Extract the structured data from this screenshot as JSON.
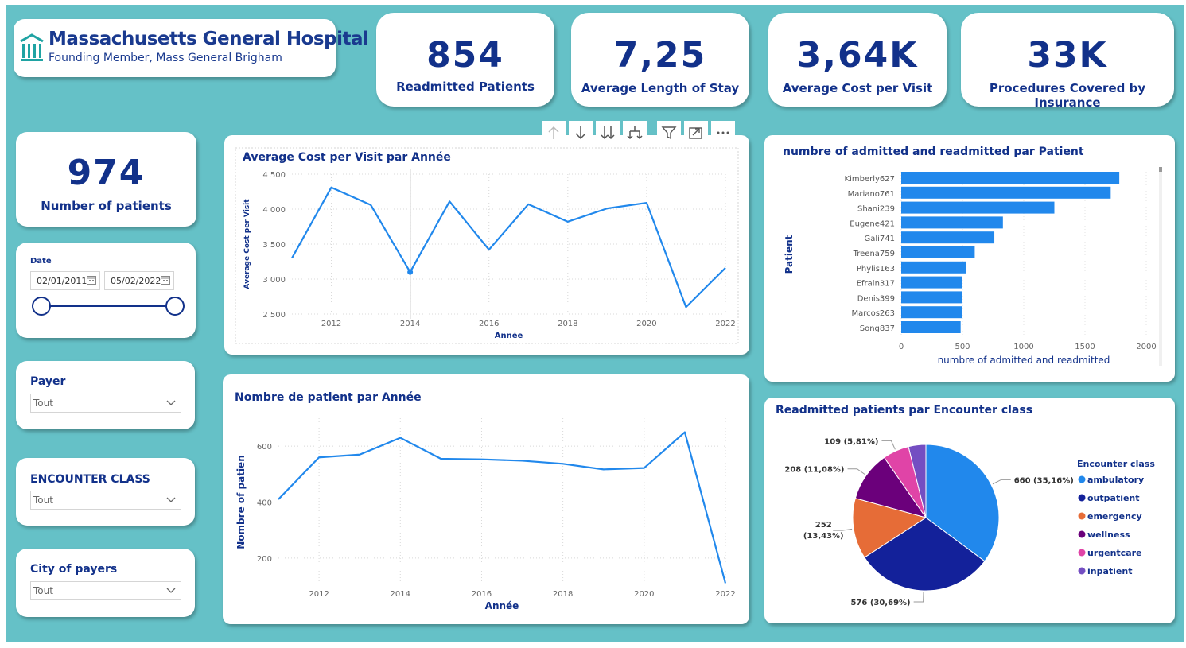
{
  "header": {
    "title": "Massachusetts General Hospital",
    "subtitle": "Founding Member, Mass General Brigham"
  },
  "kpis": [
    {
      "value": "854",
      "label": "Readmitted Patients"
    },
    {
      "value": "7,25",
      "label": "Average Length of Stay"
    },
    {
      "value": "3,64K",
      "label": "Average Cost per Visit"
    },
    {
      "value": "33K",
      "label": "Procedures Covered by Insurance"
    }
  ],
  "patients_card": {
    "value": "974",
    "label": "Number of patients"
  },
  "date_slicer": {
    "label": "Date",
    "start": "02/01/2011",
    "end": "05/02/2022"
  },
  "slicers": [
    {
      "title": "Payer",
      "value": "Tout"
    },
    {
      "title": "ENCOUNTER CLASS",
      "value": "Tout"
    },
    {
      "title": "City of payers",
      "value": "Tout"
    }
  ],
  "colors": {
    "line": "#2188ec",
    "bar": "#2188ec",
    "text": "#12318a",
    "background": "#65c1c7"
  },
  "chart_data": [
    {
      "type": "line",
      "title": "Average Cost per Visit par Année",
      "xlabel": "Année",
      "ylabel": "Average Cost per Visit",
      "x": [
        2011,
        2012,
        2013,
        2014,
        2015,
        2016,
        2017,
        2018,
        2019,
        2020,
        2021,
        2022
      ],
      "values": [
        3300,
        4310,
        4060,
        3100,
        4110,
        3420,
        4070,
        3820,
        4010,
        4090,
        2600,
        3160
      ],
      "xticks": [
        "2012",
        "2014",
        "2016",
        "2018",
        "2020",
        "2022"
      ],
      "yticks": [
        "2 500",
        "3 000",
        "3 500",
        "4 000",
        "4 500"
      ],
      "ylim": [
        2500,
        4500
      ],
      "highlight_x": 2014,
      "grid": true
    },
    {
      "type": "bar",
      "orientation": "horizontal",
      "title": "numbre of admitted and readmitted par Patient",
      "xlabel": "numbre of admitted and readmitted",
      "ylabel": "Patient",
      "categories": [
        "Kimberly627",
        "Mariano761",
        "Shani239",
        "Eugene421",
        "Gali741",
        "Treena759",
        "Phylis163",
        "Efrain317",
        "Denis399",
        "Marcos263",
        "Song837"
      ],
      "values": [
        1780,
        1710,
        1250,
        830,
        760,
        600,
        530,
        500,
        500,
        495,
        485
      ],
      "xticks": [
        "0",
        "500",
        "1000",
        "1500",
        "2000"
      ],
      "xlim": [
        0,
        2000
      ],
      "grid": true
    },
    {
      "type": "line",
      "title": "Nombre de patient par Année",
      "xlabel": "Année",
      "ylabel": "Nombre of patien",
      "x": [
        2011,
        2012,
        2013,
        2014,
        2015,
        2016,
        2017,
        2018,
        2019,
        2020,
        2021,
        2022
      ],
      "values": [
        410,
        560,
        570,
        630,
        555,
        553,
        548,
        537,
        517,
        522,
        650,
        110
      ],
      "xticks": [
        "2012",
        "2014",
        "2016",
        "2018",
        "2020",
        "2022"
      ],
      "yticks": [
        "200",
        "400",
        "600"
      ],
      "ylim": [
        100,
        700
      ],
      "grid": true
    },
    {
      "type": "pie",
      "title": "Readmitted patients par Encounter class",
      "legend_title": "Encounter class",
      "legend_position": "right",
      "slices": [
        {
          "name": "ambulatory",
          "value": 660,
          "label": "660 (35,16%)",
          "color": "#2188ec"
        },
        {
          "name": "outpatient",
          "value": 576,
          "label": "576 (30,69%)",
          "color": "#13219a"
        },
        {
          "name": "emergency",
          "value": 252,
          "label": "252 (13,43%)",
          "color": "#e66c37"
        },
        {
          "name": "wellness",
          "value": 208,
          "label": "208 (11,08%)",
          "color": "#6b007b"
        },
        {
          "name": "urgentcare",
          "value": 109,
          "label": "109 (5,81%)",
          "color": "#e044a7"
        },
        {
          "name": "inpatient",
          "value": 72,
          "label": "",
          "color": "#744ec2"
        }
      ]
    }
  ]
}
